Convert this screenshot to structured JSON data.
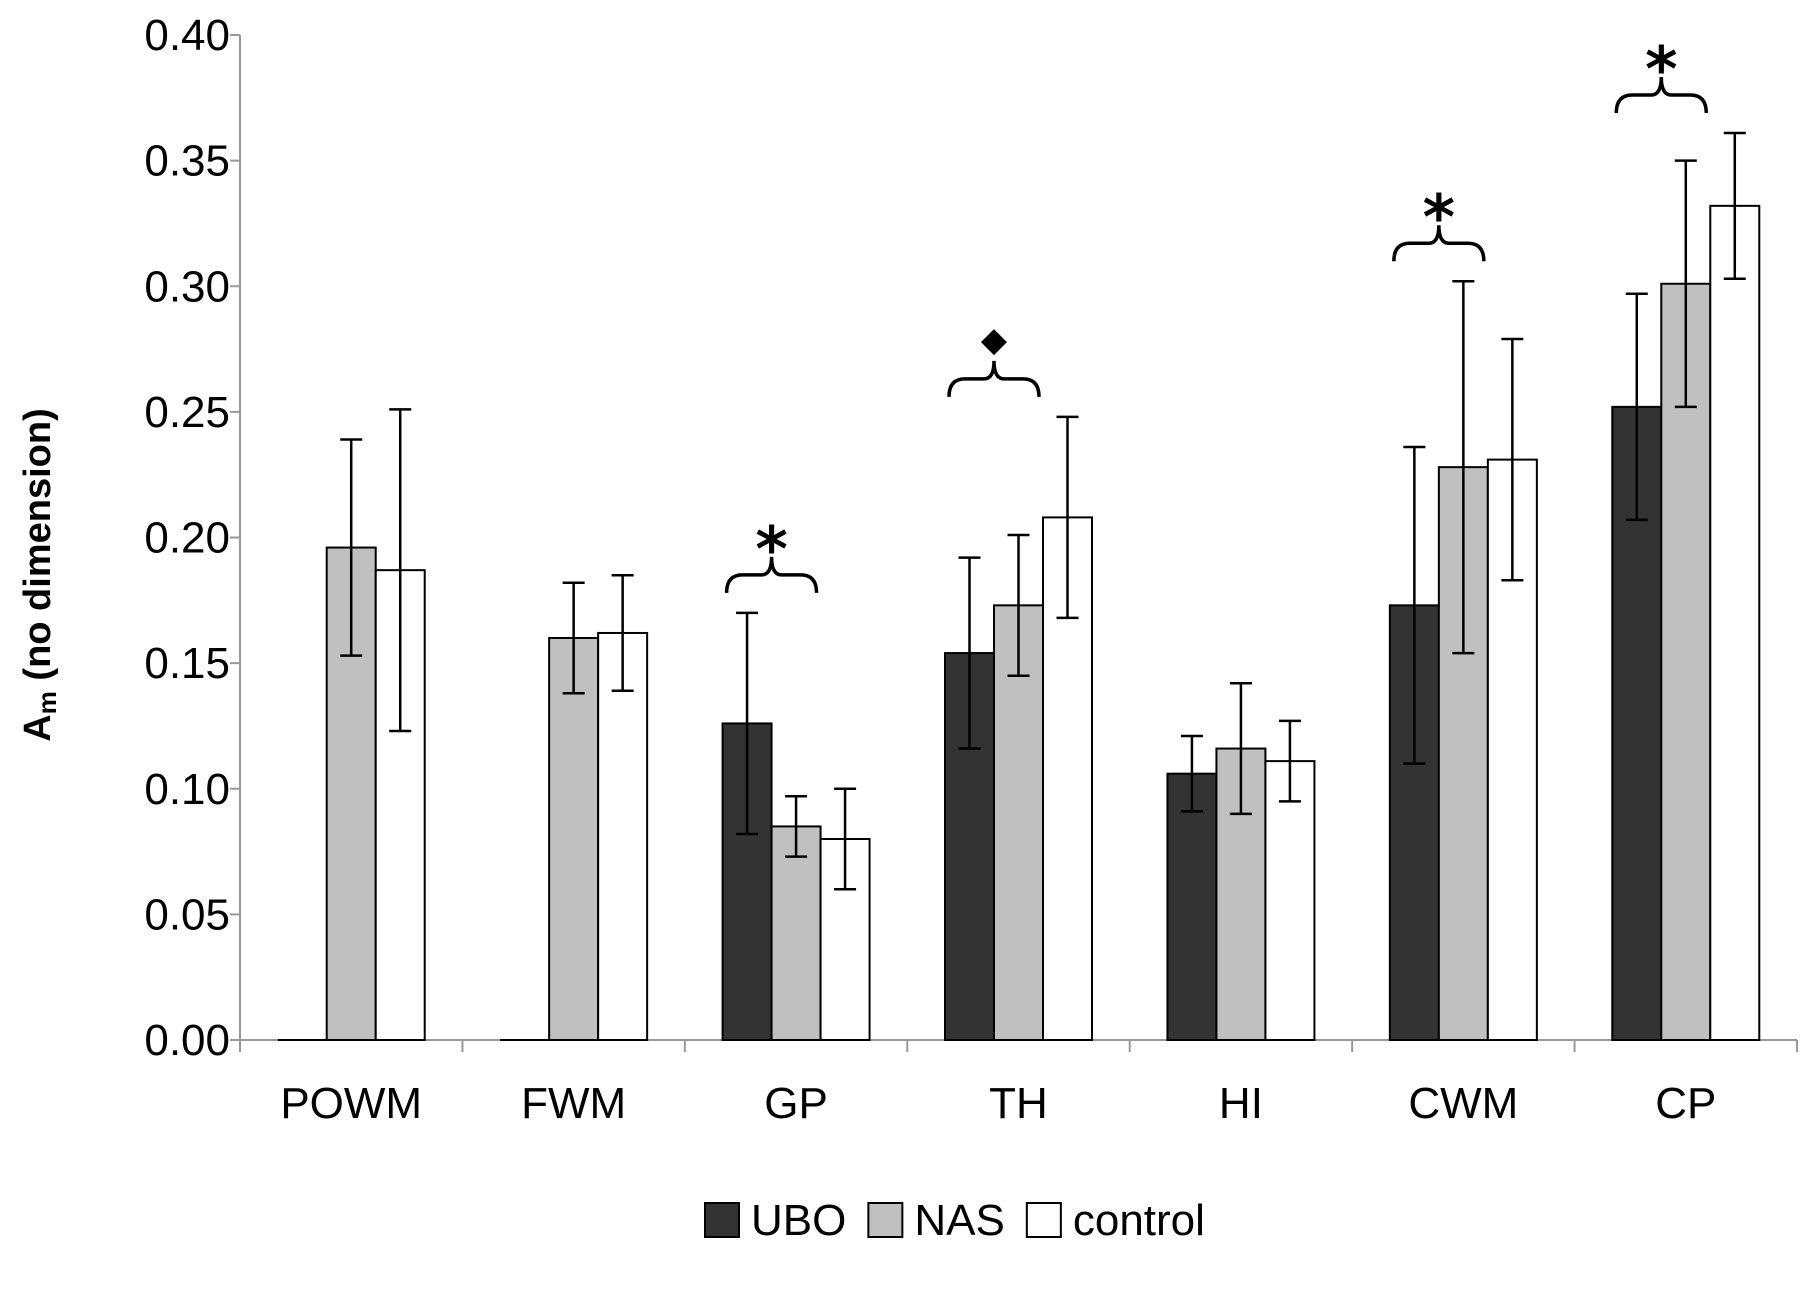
{
  "chart_data": {
    "type": "bar",
    "title": "",
    "xlabel": "",
    "ylabel": "A",
    "ylabel_subscript": "m",
    "ylabel_suffix": " (no dimension)",
    "ylim": [
      0,
      0.4
    ],
    "yticks": [
      "0.00",
      "0.05",
      "0.10",
      "0.15",
      "0.20",
      "0.25",
      "0.30",
      "0.35",
      "0.40"
    ],
    "categories": [
      "POWM",
      "FWM",
      "GP",
      "TH",
      "HI",
      "CWM",
      "CP"
    ],
    "series": [
      {
        "name": "UBO",
        "color": "#333333",
        "values": [
          0,
          0,
          0.126,
          0.154,
          0.106,
          0.173,
          0.252
        ],
        "error": [
          0,
          0,
          0.044,
          0.038,
          0.015,
          0.063,
          0.045
        ]
      },
      {
        "name": "NAS",
        "color": "#c0c0c0",
        "values": [
          0.196,
          0.16,
          0.085,
          0.173,
          0.116,
          0.228,
          0.301
        ],
        "error": [
          0.043,
          0.022,
          0.012,
          0.028,
          0.026,
          0.074,
          0.049
        ]
      },
      {
        "name": "control",
        "color": "#ffffff",
        "values": [
          0.187,
          0.162,
          0.08,
          0.208,
          0.111,
          0.231,
          0.332
        ],
        "error": [
          0.064,
          0.023,
          0.02,
          0.04,
          0.016,
          0.048,
          0.029
        ]
      }
    ],
    "annotations": [
      {
        "category": "GP",
        "symbol": "*"
      },
      {
        "category": "TH",
        "symbol": "◆"
      },
      {
        "category": "CWM",
        "symbol": "*"
      },
      {
        "category": "CP",
        "symbol": "*"
      }
    ],
    "legend_position": "bottom",
    "grid": false
  }
}
